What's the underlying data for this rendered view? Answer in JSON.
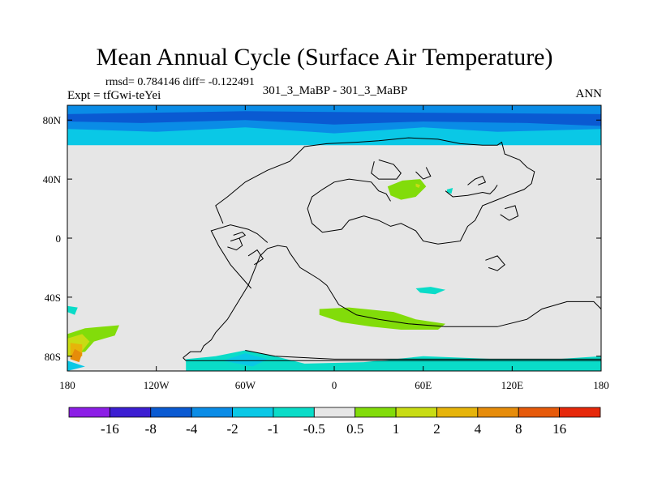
{
  "title": "Mean Annual Cycle (Surface Air Temperature)",
  "stats_text": "rmsd= 0.784146 diff= -0.122491",
  "expt_text": "Expt = tfGwi-teYei",
  "case_label": "301_3_MaBP - 301_3_MaBP",
  "season": "ANN",
  "chart_data": {
    "type": "heatmap",
    "title": "Mean Annual Cycle (Surface Air Temperature)",
    "variable": "Surface Air Temperature difference",
    "rmsd": 0.784146,
    "mean_diff": -0.122491,
    "xlim": [
      -180,
      180
    ],
    "ylim": [
      -90,
      90
    ],
    "x_ticks": [
      {
        "value": -180,
        "label": "180"
      },
      {
        "value": -120,
        "label": "120W"
      },
      {
        "value": -60,
        "label": "60W"
      },
      {
        "value": 0,
        "label": "0"
      },
      {
        "value": 60,
        "label": "60E"
      },
      {
        "value": 120,
        "label": "120E"
      },
      {
        "value": 180,
        "label": "180"
      }
    ],
    "y_ticks": [
      {
        "value": 80,
        "label": "80N"
      },
      {
        "value": 40,
        "label": "40N"
      },
      {
        "value": 0,
        "label": "0"
      },
      {
        "value": -40,
        "label": "40S"
      },
      {
        "value": -80,
        "label": "80S"
      }
    ],
    "colorbar": {
      "colors": [
        "#8c1ee6",
        "#3c1ed2",
        "#0a5ad2",
        "#0a8ce6",
        "#0ac8e6",
        "#0adcc8",
        "#e6e6e6",
        "#82dc0a",
        "#c8dc14",
        "#e6b40a",
        "#e68c0a",
        "#e65a0a",
        "#e6280a"
      ],
      "labels": [
        "-16",
        "-8",
        "-4",
        "-2",
        "-1",
        "-0.5",
        "0.5",
        "1",
        "2",
        "4",
        "8",
        "16"
      ]
    },
    "regions": [
      {
        "name": "arctic-band-weak",
        "level": -2,
        "color": "#0ac8e6",
        "points": [
          [
            -180,
            90
          ],
          [
            180,
            90
          ],
          [
            180,
            63
          ],
          [
            -180,
            63
          ]
        ]
      },
      {
        "name": "arctic-band-moderate",
        "level": -4,
        "color": "#0a8ce6",
        "points": [
          [
            -180,
            90
          ],
          [
            180,
            90
          ],
          [
            180,
            74
          ],
          [
            110,
            72
          ],
          [
            60,
            75
          ],
          [
            0,
            71
          ],
          [
            -60,
            75
          ],
          [
            -120,
            72
          ],
          [
            -180,
            74
          ]
        ]
      },
      {
        "name": "arctic-band-strong",
        "level": -8,
        "color": "#0a5ad2",
        "points": [
          [
            -180,
            84
          ],
          [
            -60,
            86
          ],
          [
            60,
            85
          ],
          [
            180,
            84
          ],
          [
            180,
            76
          ],
          [
            130,
            78
          ],
          [
            60,
            79
          ],
          [
            0,
            77
          ],
          [
            -60,
            80
          ],
          [
            -130,
            78
          ],
          [
            -180,
            79
          ]
        ]
      },
      {
        "name": "central-asia-warm",
        "level": 1,
        "color": "#82dc0a",
        "points": [
          [
            36,
            35
          ],
          [
            46,
            39
          ],
          [
            58,
            40
          ],
          [
            62,
            35
          ],
          [
            55,
            28
          ],
          [
            45,
            26
          ],
          [
            38,
            29
          ]
        ]
      },
      {
        "name": "central-asia-warm-core",
        "level": 2,
        "color": "#c8dc14",
        "points": [
          [
            55,
            37
          ],
          [
            58,
            36
          ],
          [
            57,
            34
          ],
          [
            55,
            35
          ]
        ]
      },
      {
        "name": "southern-ocean-warm",
        "level": 1,
        "color": "#82dc0a",
        "points": [
          [
            -10,
            -48
          ],
          [
            10,
            -47
          ],
          [
            40,
            -50
          ],
          [
            55,
            -55
          ],
          [
            75,
            -58
          ],
          [
            70,
            -62
          ],
          [
            45,
            -62
          ],
          [
            25,
            -60
          ],
          [
            5,
            -57
          ],
          [
            -10,
            -52
          ]
        ]
      },
      {
        "name": "south-pacific-warm",
        "level": 1,
        "color": "#82dc0a",
        "points": [
          [
            -180,
            -65
          ],
          [
            -168,
            -61
          ],
          [
            -145,
            -59
          ],
          [
            -148,
            -66
          ],
          [
            -162,
            -70
          ],
          [
            -168,
            -77
          ],
          [
            -180,
            -79
          ]
        ]
      },
      {
        "name": "south-pacific-warm-2",
        "level": 2,
        "color": "#c8dc14",
        "points": [
          [
            -180,
            -68
          ],
          [
            -170,
            -65
          ],
          [
            -165,
            -70
          ],
          [
            -172,
            -79
          ],
          [
            -180,
            -80
          ]
        ]
      },
      {
        "name": "south-pacific-warm-3",
        "level": 4,
        "color": "#e6b40a",
        "points": [
          [
            -178,
            -71
          ],
          [
            -170,
            -72
          ],
          [
            -170,
            -80
          ],
          [
            -178,
            -82
          ]
        ]
      },
      {
        "name": "south-pacific-warm-4",
        "level": 8,
        "color": "#e68c0a",
        "points": [
          [
            -175,
            -75
          ],
          [
            -170,
            -78
          ],
          [
            -172,
            -84
          ],
          [
            -178,
            -82
          ]
        ]
      },
      {
        "name": "antarctic-coast-cool",
        "level": -1,
        "color": "#0adcc8",
        "points": [
          [
            -100,
            -90
          ],
          [
            -100,
            -82
          ],
          [
            -80,
            -80
          ],
          [
            -60,
            -76
          ],
          [
            -40,
            -80
          ],
          [
            -20,
            -85
          ],
          [
            20,
            -84
          ],
          [
            60,
            -80
          ],
          [
            110,
            -82
          ],
          [
            150,
            -82
          ],
          [
            180,
            -80
          ],
          [
            180,
            -90
          ]
        ]
      },
      {
        "name": "antarctic-coast-cool-2",
        "level": -2,
        "color": "#0ac8e6",
        "points": [
          [
            -75,
            -83
          ],
          [
            -60,
            -78
          ],
          [
            -45,
            -82
          ],
          [
            -55,
            -87
          ]
        ]
      },
      {
        "name": "indian-ocean-cool",
        "level": -1,
        "color": "#0adcc8",
        "points": [
          [
            55,
            -34
          ],
          [
            65,
            -33
          ],
          [
            75,
            -35
          ],
          [
            68,
            -38
          ],
          [
            58,
            -37
          ]
        ]
      },
      {
        "name": "south-pacific-cool",
        "level": -1,
        "color": "#0adcc8",
        "points": [
          [
            -180,
            -46
          ],
          [
            -173,
            -47
          ],
          [
            -175,
            -52
          ],
          [
            -180,
            -50
          ]
        ]
      },
      {
        "name": "bering-cool",
        "level": -1,
        "color": "#0adcc8",
        "points": [
          [
            76,
            33
          ],
          [
            80,
            34
          ],
          [
            79,
            30
          ],
          [
            76,
            31
          ]
        ]
      },
      {
        "name": "antarctic-southwest-cool",
        "level": -2,
        "color": "#0ac8e6",
        "points": [
          [
            -180,
            -83
          ],
          [
            -168,
            -87
          ],
          [
            -180,
            -90
          ]
        ]
      }
    ],
    "coastlines": [
      [
        [
          -102,
          -81
        ],
        [
          -97,
          -77
        ],
        [
          -90,
          -77
        ],
        [
          -88,
          -73
        ],
        [
          -83,
          -69
        ],
        [
          -80,
          -64
        ],
        [
          -72,
          -55
        ],
        [
          -58,
          -32
        ],
        [
          -50,
          -12
        ],
        [
          -45,
          -7
        ],
        [
          -38,
          -5
        ],
        [
          -32,
          -6
        ],
        [
          -30,
          -10
        ],
        [
          -23,
          -20
        ],
        [
          -18,
          -23
        ],
        [
          -10,
          -28
        ],
        [
          -5,
          -32
        ],
        [
          3,
          -45
        ],
        [
          15,
          -52
        ],
        [
          30,
          -55
        ],
        [
          50,
          -58
        ],
        [
          75,
          -60
        ],
        [
          95,
          -60
        ],
        [
          110,
          -60
        ],
        [
          130,
          -55
        ],
        [
          140,
          -48
        ],
        [
          157,
          -43
        ],
        [
          175,
          -43
        ],
        [
          180,
          -48
        ]
      ],
      [
        [
          -102,
          -81
        ],
        [
          -100,
          -83
        ],
        [
          180,
          -83
        ]
      ],
      [
        [
          -60,
          -76
        ],
        [
          -40,
          -80
        ],
        [
          0,
          -82
        ],
        [
          180,
          -82
        ]
      ],
      [
        [
          -56,
          -34
        ],
        [
          -70,
          -18
        ],
        [
          -78,
          -5
        ],
        [
          -83,
          5
        ],
        [
          -70,
          9
        ],
        [
          -58,
          6
        ],
        [
          -52,
          3
        ],
        [
          -45,
          -3
        ]
      ],
      [
        [
          -75,
          10
        ],
        [
          -80,
          22
        ],
        [
          -72,
          28
        ],
        [
          -60,
          38
        ],
        [
          -45,
          46
        ],
        [
          -30,
          52
        ],
        [
          -20,
          62
        ],
        [
          -5,
          64
        ],
        [
          15,
          65
        ],
        [
          30,
          66
        ],
        [
          50,
          68
        ],
        [
          70,
          67
        ],
        [
          85,
          64
        ],
        [
          100,
          63
        ],
        [
          110,
          63
        ],
        [
          113,
          65
        ],
        [
          115,
          57
        ],
        [
          125,
          53
        ],
        [
          130,
          48
        ],
        [
          135,
          45
        ],
        [
          133,
          37
        ],
        [
          128,
          33
        ],
        [
          120,
          30
        ],
        [
          110,
          26
        ],
        [
          100,
          22
        ],
        [
          95,
          12
        ],
        [
          90,
          8
        ],
        [
          85,
          -2
        ],
        [
          70,
          -4
        ],
        [
          60,
          -2
        ],
        [
          55,
          5
        ],
        [
          45,
          10
        ],
        [
          38,
          8
        ],
        [
          30,
          12
        ],
        [
          20,
          15
        ],
        [
          10,
          12
        ],
        [
          5,
          6
        ],
        [
          -8,
          4
        ],
        [
          -15,
          10
        ],
        [
          -18,
          20
        ],
        [
          -15,
          28
        ],
        [
          -8,
          33
        ],
        [
          0,
          38
        ],
        [
          10,
          40
        ],
        [
          25,
          38
        ],
        [
          30,
          32
        ],
        [
          35,
          30
        ],
        [
          38,
          25
        ]
      ],
      [
        [
          27,
          52
        ],
        [
          25,
          44
        ],
        [
          30,
          40
        ],
        [
          42,
          40
        ],
        [
          45,
          44
        ],
        [
          40,
          50
        ],
        [
          30,
          53
        ]
      ],
      [
        [
          55,
          45
        ],
        [
          60,
          40
        ],
        [
          65,
          42
        ],
        [
          62,
          48
        ]
      ],
      [
        [
          75,
          32
        ],
        [
          80,
          28
        ],
        [
          90,
          29
        ],
        [
          100,
          31
        ],
        [
          105,
          30
        ],
        [
          108,
          33
        ],
        [
          110,
          36
        ]
      ],
      [
        [
          112,
          16
        ],
        [
          118,
          12
        ],
        [
          124,
          15
        ],
        [
          122,
          22
        ],
        [
          115,
          20
        ]
      ],
      [
        [
          90,
          36
        ],
        [
          95,
          40
        ],
        [
          100,
          42
        ],
        [
          102,
          38
        ],
        [
          97,
          36
        ]
      ],
      [
        [
          102,
          -15
        ],
        [
          110,
          -12
        ],
        [
          115,
          -18
        ],
        [
          110,
          -22
        ],
        [
          104,
          -20
        ]
      ],
      [
        [
          -58,
          -12
        ],
        [
          -52,
          -8
        ],
        [
          -48,
          -14
        ],
        [
          -54,
          -18
        ]
      ],
      [
        [
          -70,
          -2
        ],
        [
          -64,
          0
        ],
        [
          -62,
          -5
        ],
        [
          -66,
          -8
        ],
        [
          -72,
          -6
        ]
      ],
      [
        [
          -68,
          2
        ],
        [
          -62,
          4
        ],
        [
          -60,
          2
        ],
        [
          -64,
          0
        ]
      ]
    ]
  }
}
